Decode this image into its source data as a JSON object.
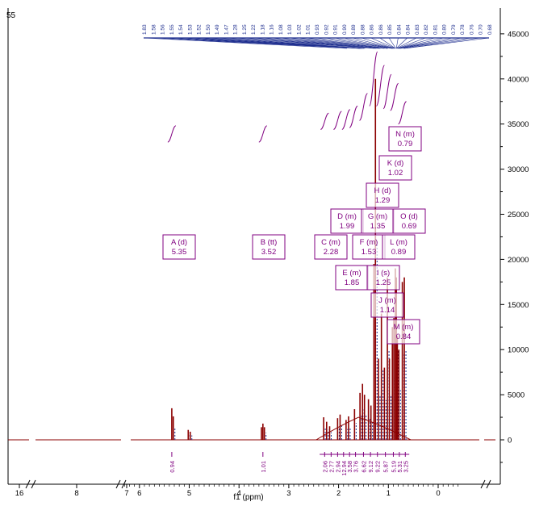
{
  "corner_label": "55",
  "colors": {
    "spectrum": "#8b0000",
    "overlay": "#1f2f8f",
    "annot": "#800080",
    "axis": "#000000"
  },
  "chart_data": {
    "type": "line",
    "title": "",
    "xlabel": "f1 (ppm)",
    "ylabel": "",
    "xlim": [
      -1.2,
      6.7
    ],
    "ylim": [
      -5000,
      47000
    ],
    "x_axis_reversed": true,
    "x_axis_breaks": [
      {
        "ticks_before": [
          "16"
        ],
        "ticks_after": [
          "8",
          "7"
        ]
      },
      {
        "ticks_after": [
          "6",
          "5",
          "4",
          "3",
          "2",
          "1",
          "0"
        ]
      }
    ],
    "x_ticks": [
      6,
      5,
      4,
      3,
      2,
      1,
      0
    ],
    "x_tick_labels": [
      "16",
      "8",
      "7",
      "6",
      "5",
      "4",
      "3",
      "2",
      "1",
      "0"
    ],
    "y_ticks": [
      0,
      5000,
      10000,
      15000,
      20000,
      25000,
      30000,
      35000,
      40000,
      45000
    ],
    "y_tick_labels": [
      "0",
      "5000",
      "10000",
      "15000",
      "20000",
      "25000",
      "30000",
      "35000",
      "40000",
      "45000"
    ],
    "peak_labels_top": [
      "1.83",
      "1.58",
      "1.56",
      "1.55",
      "1.54",
      "1.53",
      "1.52",
      "1.50",
      "1.49",
      "1.47",
      "1.28",
      "1.25",
      "1.22",
      "1.18",
      "1.16",
      "1.08",
      "1.03",
      "1.02",
      "1.01",
      "0.93",
      "0.92",
      "0.91",
      "0.90",
      "0.89",
      "0.88",
      "0.86",
      "0.86",
      "0.85",
      "0.84",
      "0.84",
      "0.83",
      "0.82",
      "0.81",
      "0.80",
      "0.79",
      "0.78",
      "0.76",
      "0.70",
      "0.68"
    ],
    "multiplets": [
      {
        "letter": "A",
        "type": "d",
        "shift": "5.35",
        "x": 5.35
      },
      {
        "letter": "B",
        "type": "tt",
        "shift": "3.52",
        "x": 3.52
      },
      {
        "letter": "C",
        "type": "m",
        "shift": "2.28",
        "x": 2.28
      },
      {
        "letter": "D",
        "type": "m",
        "shift": "1.99",
        "x": 1.99
      },
      {
        "letter": "E",
        "type": "m",
        "shift": "1.85",
        "x": 1.85
      },
      {
        "letter": "F",
        "type": "m",
        "shift": "1.53",
        "x": 1.53
      },
      {
        "letter": "G",
        "type": "m",
        "shift": "1.35",
        "x": 1.35
      },
      {
        "letter": "H",
        "type": "d",
        "shift": "1.29",
        "x": 1.29
      },
      {
        "letter": "I",
        "type": "s",
        "shift": "1.25",
        "x": 1.25
      },
      {
        "letter": "J",
        "type": "m",
        "shift": "1.14",
        "x": 1.14
      },
      {
        "letter": "K",
        "type": "d",
        "shift": "1.02",
        "x": 1.02
      },
      {
        "letter": "L",
        "type": "m",
        "shift": "0.89",
        "x": 0.89
      },
      {
        "letter": "M",
        "type": "m",
        "shift": "0.84",
        "x": 0.84
      },
      {
        "letter": "N",
        "type": "m",
        "shift": "0.79",
        "x": 0.79
      },
      {
        "letter": "O",
        "type": "d",
        "shift": "0.69",
        "x": 0.69
      }
    ],
    "integrals": [
      {
        "x": 5.35,
        "value": "0.94"
      },
      {
        "x": 3.52,
        "value": "1.01"
      },
      {
        "x": 2.28,
        "value": "2.06"
      },
      {
        "x": 2.15,
        "value": "2.77"
      },
      {
        "x": 2.02,
        "value": "2.94"
      },
      {
        "x": 1.9,
        "value": "12.94"
      },
      {
        "x": 1.78,
        "value": "3.58"
      },
      {
        "x": 1.66,
        "value": "3.76"
      },
      {
        "x": 1.5,
        "value": "6.62"
      },
      {
        "x": 1.36,
        "value": "9.12"
      },
      {
        "x": 1.22,
        "value": "9.22"
      },
      {
        "x": 1.06,
        "value": "5.87"
      },
      {
        "x": 0.9,
        "value": "5.19"
      },
      {
        "x": 0.78,
        "value": "5.31"
      },
      {
        "x": 0.66,
        "value": "3.25"
      }
    ],
    "peaks": [
      {
        "x": 5.35,
        "y": 3500
      },
      {
        "x": 5.32,
        "y": 2600
      },
      {
        "x": 5.02,
        "y": 1100
      },
      {
        "x": 4.98,
        "y": 900
      },
      {
        "x": 3.55,
        "y": 1400
      },
      {
        "x": 3.52,
        "y": 1800
      },
      {
        "x": 3.49,
        "y": 1400
      },
      {
        "x": 2.3,
        "y": 2500
      },
      {
        "x": 2.24,
        "y": 2000
      },
      {
        "x": 2.18,
        "y": 1500
      },
      {
        "x": 2.02,
        "y": 2400
      },
      {
        "x": 1.97,
        "y": 2800
      },
      {
        "x": 1.85,
        "y": 2200
      },
      {
        "x": 1.8,
        "y": 2600
      },
      {
        "x": 1.68,
        "y": 3400
      },
      {
        "x": 1.57,
        "y": 5200
      },
      {
        "x": 1.52,
        "y": 6200
      },
      {
        "x": 1.48,
        "y": 5000
      },
      {
        "x": 1.4,
        "y": 4500
      },
      {
        "x": 1.35,
        "y": 3800
      },
      {
        "x": 1.29,
        "y": 19500
      },
      {
        "x": 1.26,
        "y": 40000
      },
      {
        "x": 1.2,
        "y": 9000
      },
      {
        "x": 1.14,
        "y": 14000
      },
      {
        "x": 1.08,
        "y": 8000
      },
      {
        "x": 1.02,
        "y": 18000
      },
      {
        "x": 0.98,
        "y": 9000
      },
      {
        "x": 0.92,
        "y": 12500
      },
      {
        "x": 0.89,
        "y": 13500
      },
      {
        "x": 0.86,
        "y": 19000
      },
      {
        "x": 0.84,
        "y": 18000
      },
      {
        "x": 0.82,
        "y": 11500
      },
      {
        "x": 0.79,
        "y": 10000
      },
      {
        "x": 0.72,
        "y": 17500
      },
      {
        "x": 0.68,
        "y": 18000
      }
    ]
  }
}
